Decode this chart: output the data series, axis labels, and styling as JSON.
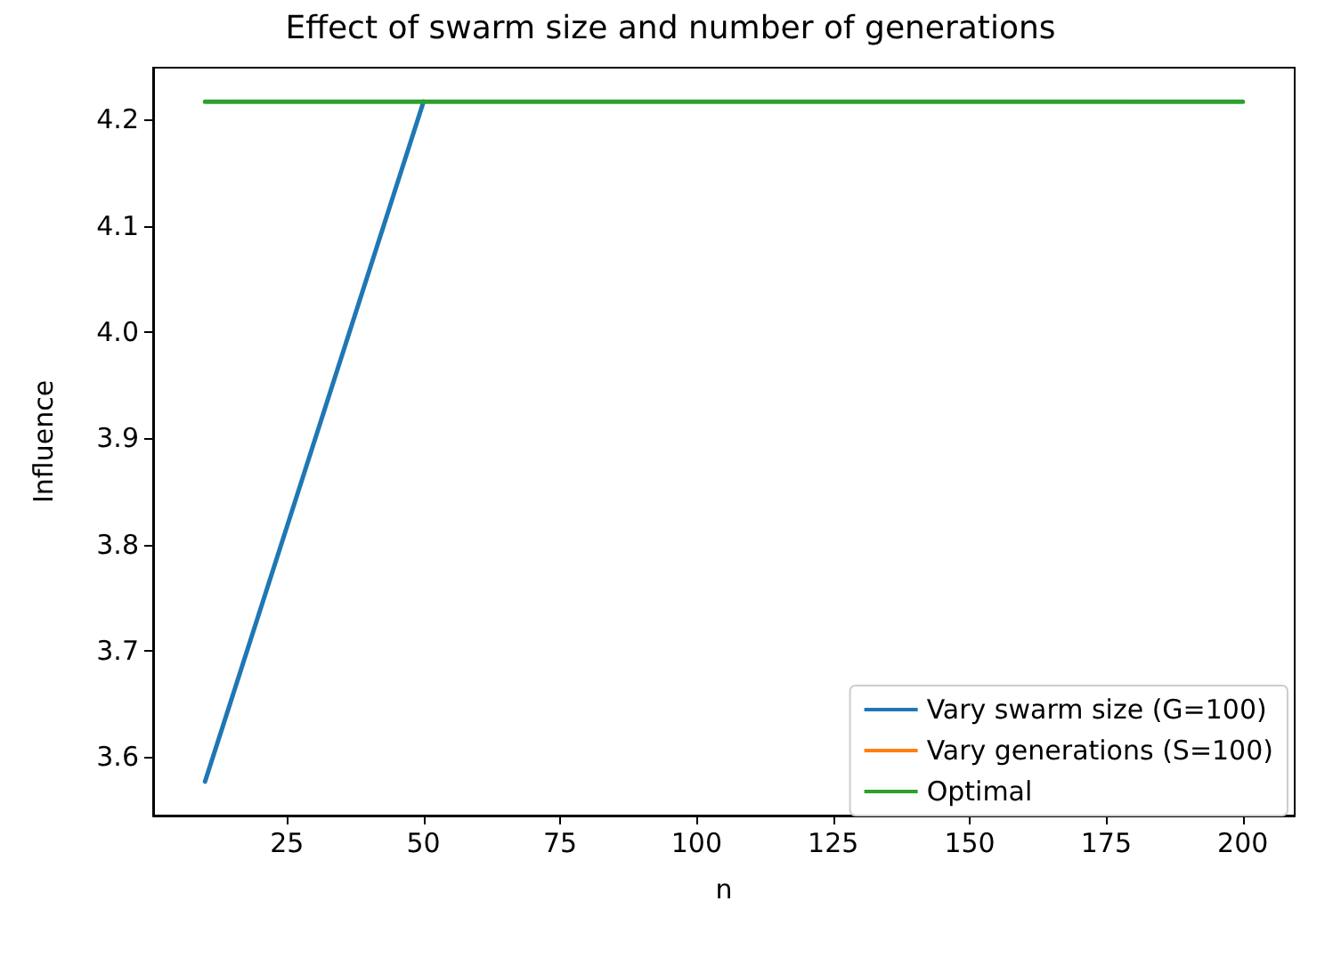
{
  "chart_data": {
    "type": "line",
    "title": "Effect of swarm size and number of generations",
    "xlabel": "n",
    "ylabel": "Influence",
    "xlim": [
      0.5,
      209.5
    ],
    "xticks": [
      25,
      50,
      75,
      100,
      125,
      150,
      175,
      200
    ],
    "ylim": [
      3.545,
      4.249
    ],
    "yticks": [
      3.6,
      3.7,
      3.8,
      3.9,
      {
        "value": 4,
        "label": "4.0"
      },
      4.1,
      4.2
    ],
    "legend": "bottom right",
    "grid": false,
    "series": [
      {
        "name": "Vary swarm size (G=100)",
        "color": "#1f77b4",
        "x": [
          10,
          50
        ],
        "values": [
          3.577,
          4.217
        ]
      },
      {
        "name": "Vary generations (S=100)",
        "color": "#ff7f0e"
      },
      {
        "name": "Optimal",
        "color": "#2ca02c",
        "x": [
          10,
          200
        ],
        "values": [
          4.217,
          4.217
        ]
      }
    ]
  }
}
